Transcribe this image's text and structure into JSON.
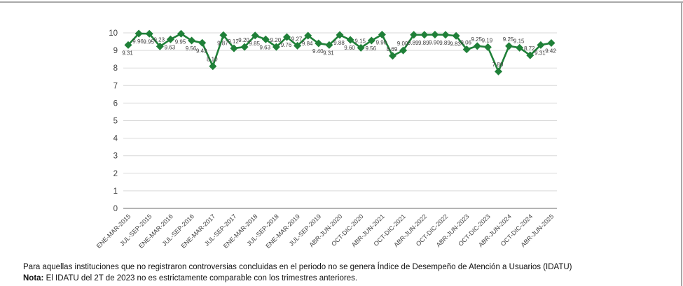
{
  "chart_data": {
    "type": "line",
    "title": "",
    "xlabel": "",
    "ylabel": "",
    "ylim": [
      0,
      10
    ],
    "yticks": [
      0,
      1,
      2,
      3,
      4,
      5,
      6,
      7,
      8,
      9,
      10
    ],
    "grid": "horizontal",
    "legend_position": "none",
    "marker": "diamond",
    "series": [
      {
        "name": "IDATU",
        "values": [
          9.31,
          9.96,
          9.95,
          9.23,
          9.63,
          9.95,
          9.56,
          9.43,
          8.1,
          9.87,
          9.12,
          9.2,
          9.85,
          9.63,
          9.2,
          9.76,
          9.27,
          9.84,
          9.4,
          9.31,
          9.88,
          9.6,
          9.15,
          9.56,
          9.9,
          8.69,
          9.0,
          9.89,
          9.89,
          9.9,
          9.89,
          9.83,
          9.06,
          9.25,
          9.19,
          7.8,
          9.25,
          9.15,
          8.72,
          9.31,
          9.42
        ]
      }
    ],
    "data_label_side": [
      "below",
      "below",
      "below",
      "above",
      "below",
      "below",
      "below",
      "below",
      "above",
      "below",
      "above",
      "above",
      "below",
      "below",
      "above",
      "below",
      "above",
      "below",
      "below",
      "below",
      "below",
      "below",
      "above",
      "below",
      "below",
      "above",
      "above",
      "below",
      "below",
      "below",
      "below",
      "below",
      "above",
      "above",
      "above",
      "above",
      "above",
      "above",
      "above",
      "below",
      "below"
    ],
    "x_tick_labels": [
      "ENE-MAR-2015",
      "JUL-SEP-2015",
      "ENE-MAR-2016",
      "JUL-SEP-2016",
      "ENE-MAR-2017",
      "JUL-SEP-2017",
      "ENE-MAR-2018",
      "JUL-SEP-2018",
      "ENE-MAR-2019",
      "JUL-SEP-2019",
      "ABR-JUN-2020",
      "OCT-DIC-2020",
      "ABR-JUN-2021",
      "OCT-DIC-2021",
      "ABR-JUN-2022",
      "OCT-DIC-2022",
      "ABR-JUN-2023",
      "OCT-DIC-2023",
      "ABR-JUN-2024",
      "OCT-DIC-2024",
      "ABR-JUN-2025"
    ],
    "x_tick_every": 2,
    "x_label_rotation": -45
  },
  "colors": {
    "line": "#1f8038",
    "grid": "#d9d9d9",
    "axis_line": "#9b9b9b",
    "tick_text": "#3f3f3f",
    "data_label": "#3f3f3f",
    "frame_border": "#a9a9a9",
    "background": "#ffffff"
  },
  "notes": {
    "line1": "Para aquellas instituciones que no registraron controversias concluidas en el periodo no se genera Índice de Desempeño de Atención a Usuarios (IDATU)",
    "nota_label": "Nota:",
    "nota_text": " El IDATU del 2T de 2023 no es estrictamente comparable con los trimestres anteriores."
  }
}
